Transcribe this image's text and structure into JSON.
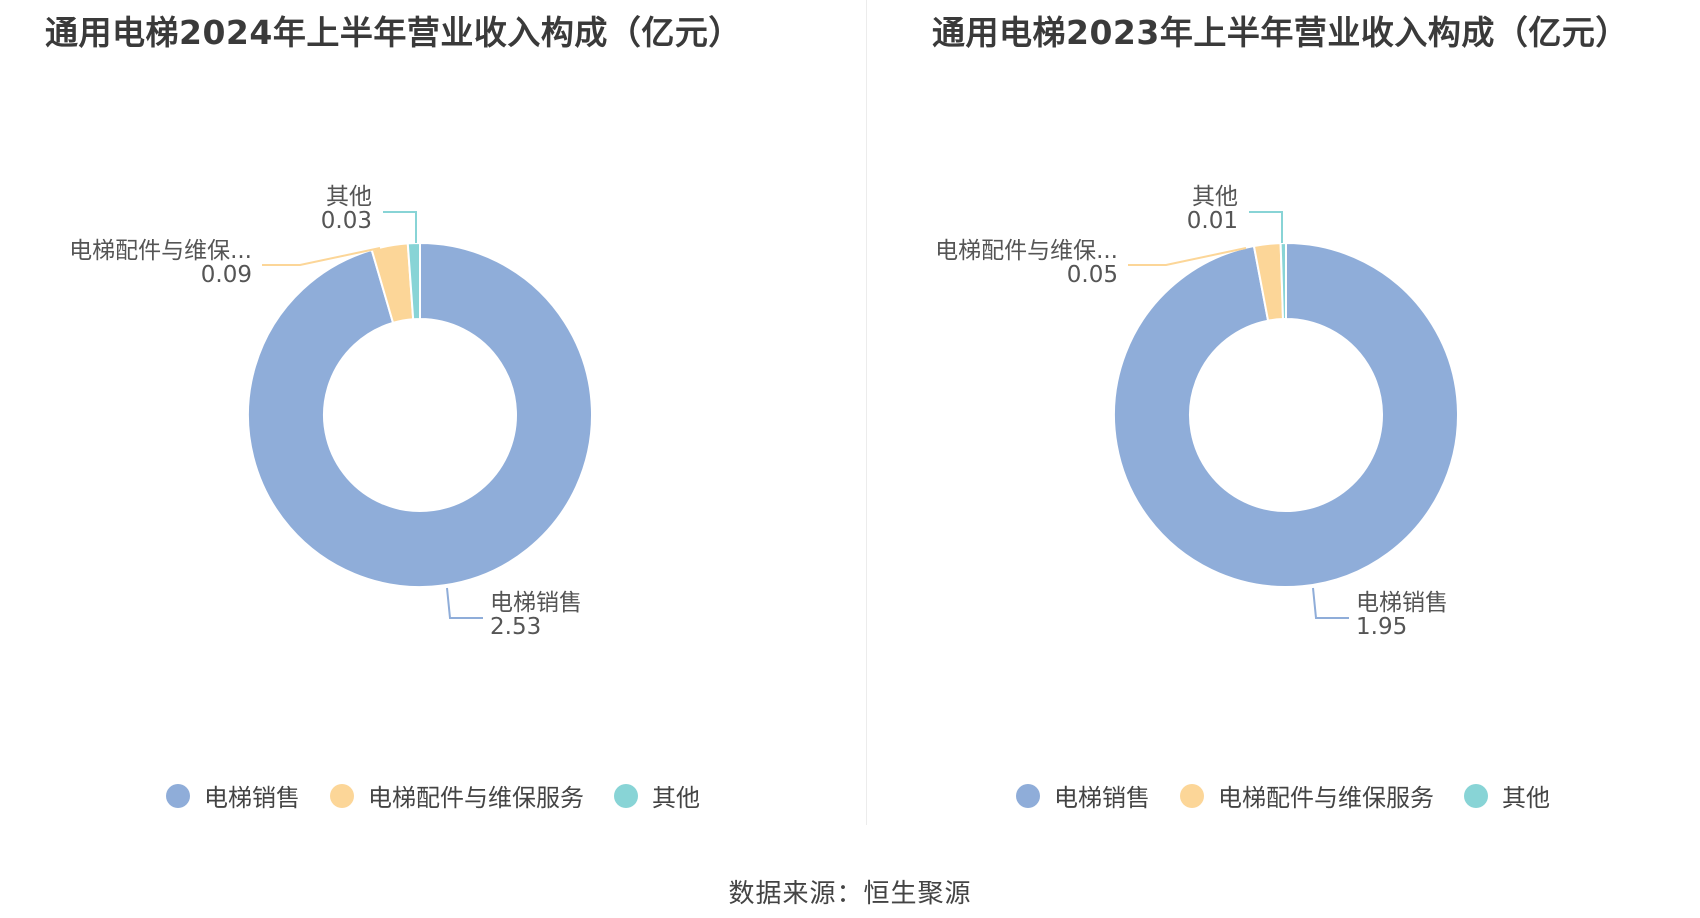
{
  "colors": [
    "#8fadd9",
    "#fcd698",
    "#88d4d6"
  ],
  "legend_labels": [
    "电梯销售",
    "电梯配件与维保服务",
    "其他"
  ],
  "source_text": "数据来源：恒生聚源",
  "chart_data": [
    {
      "type": "pie",
      "variant": "donut",
      "title": "通用电梯2024年上半年营业收入构成（亿元）",
      "categories": [
        "电梯销售",
        "电梯配件与维保服务",
        "其他"
      ],
      "values": [
        2.53,
        0.09,
        0.03
      ],
      "data_labels": [
        {
          "name": "电梯销售",
          "value": "2.53"
        },
        {
          "name": "电梯配件与维保...",
          "value": "0.09"
        },
        {
          "name": "其他",
          "value": "0.03"
        }
      ],
      "legend_position": "bottom"
    },
    {
      "type": "pie",
      "variant": "donut",
      "title": "通用电梯2023年上半年营业收入构成（亿元）",
      "categories": [
        "电梯销售",
        "电梯配件与维保服务",
        "其他"
      ],
      "values": [
        1.95,
        0.05,
        0.01
      ],
      "data_labels": [
        {
          "name": "电梯销售",
          "value": "1.95"
        },
        {
          "name": "电梯配件与维保...",
          "value": "0.05"
        },
        {
          "name": "其他",
          "value": "0.01"
        }
      ],
      "legend_position": "bottom"
    }
  ]
}
